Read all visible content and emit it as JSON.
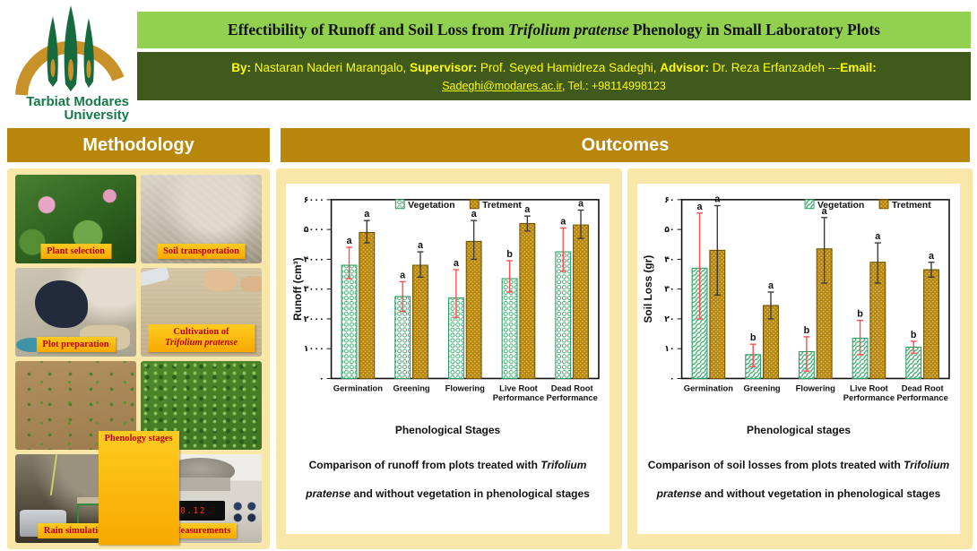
{
  "header": {
    "logo": {
      "line1": "Tarbiat Modares",
      "line2": "University"
    },
    "title": {
      "pre": "Effectibility of Runoff and Soil Loss from ",
      "italic": "Trifolium pratense",
      "post": " Phenology in Small Laboratory Plots"
    },
    "byline": {
      "by_label": "By:",
      "by_text": " Nastaran Naderi Marangalo, ",
      "supervisor_label": "Supervisor:",
      "supervisor_text": " Prof. Seyed Hamidreza Sadeghi, ",
      "advisor_label": "Advisor:",
      "advisor_text": " Dr. Reza Erfanzadeh ---",
      "email_label": "Email:",
      "email_link": "Sadeghi@modares.ac.ir",
      "tel": ", Tel.: +98114998123"
    }
  },
  "sections": {
    "methodology": "Methodology",
    "outcomes": "Outcomes"
  },
  "methodology": {
    "labels": {
      "plant_selection": "Plant selection",
      "soil_transportation": "Soil transportation",
      "plot_preparation": "Plot preparation",
      "cultivation_line1": "Cultivation of",
      "cultivation_line2": "Trifolium pratense",
      "phenology_stages": "Phenology stages",
      "rain_simulation": "Rain simulation",
      "measurements": "Measurements"
    },
    "scale_display": "470.12"
  },
  "colors": {
    "title_bg": "#92d050",
    "band_bg": "#3f5a1a",
    "gold_header": "#b8860b",
    "panel_bg": "#f8e7a8",
    "label_orange": "#ffc000",
    "label_red": "#c00000"
  },
  "chart_data": [
    {
      "type": "bar",
      "ylabel": "Runoff (cm³)",
      "xlabel": "Phenological Stages",
      "caption_pre": "Comparison of runoff from plots treated with ",
      "caption_italic": "Trifolium pratense",
      "caption_post": " and without vegetation in phenological stages",
      "categories": [
        [
          "Germination"
        ],
        [
          "Greening"
        ],
        [
          "Flowering"
        ],
        [
          "Live Root",
          "Performance"
        ],
        [
          "Dead Root",
          "Performance"
        ]
      ],
      "ylim": [
        0,
        6000
      ],
      "ytick_step": 1000,
      "ytick_labels": [
        "۰",
        "۱۰۰۰",
        "۲۰۰۰",
        "۳۰۰۰",
        "۴۰۰۰",
        "۵۰۰۰",
        "۶۰۰۰"
      ],
      "grid": false,
      "legend_position": "center",
      "series": [
        {
          "name": "Vegetation",
          "pattern": "circles",
          "color": "#27a05e",
          "error_color": "#ff4d4d",
          "values": [
            3800,
            2750,
            2700,
            3350,
            4250
          ],
          "err_minus": [
            450,
            500,
            650,
            450,
            650
          ],
          "err_plus": [
            600,
            500,
            950,
            600,
            800
          ],
          "letters": [
            "a",
            "a",
            "a",
            "b",
            "a"
          ]
        },
        {
          "name": "Tretment",
          "pattern": "dots",
          "color": "#b8860b",
          "error_color": "#3a3a3a",
          "values": [
            4900,
            3800,
            4600,
            5200,
            5150
          ],
          "err_minus": [
            350,
            400,
            600,
            250,
            450
          ],
          "err_plus": [
            400,
            450,
            700,
            250,
            500
          ],
          "letters": [
            "a",
            "a",
            "a",
            "a",
            "a"
          ]
        }
      ]
    },
    {
      "type": "bar",
      "ylabel": "Soil Loss (gr)",
      "xlabel": "Phenological stages",
      "caption_pre": "Comparison of soil losses from plots treated with ",
      "caption_italic": "Trifolium pratense",
      "caption_post": " and without vegetation in phenological stages",
      "categories": [
        [
          "Germination"
        ],
        [
          "Greening"
        ],
        [
          "Flowering"
        ],
        [
          "Live Root",
          "Performance"
        ],
        [
          "Dead Root",
          "Performance"
        ]
      ],
      "ylim": [
        0,
        60
      ],
      "ytick_step": 10,
      "ytick_labels": [
        "۰",
        "۱۰",
        "۲۰",
        "۳۰",
        "۴۰",
        "۵۰",
        "۶۰"
      ],
      "grid": false,
      "legend_position": "right",
      "series": [
        {
          "name": "Vegetation",
          "pattern": "diag",
          "color": "#27a05e",
          "error_color": "#ff4d4d",
          "values": [
            37,
            8,
            9,
            13.5,
            10.5
          ],
          "err_minus": [
            17,
            4,
            6.5,
            5.5,
            2
          ],
          "err_plus": [
            18.5,
            3.5,
            5,
            6,
            2
          ],
          "letters": [
            "a",
            "b",
            "b",
            "b",
            "b"
          ]
        },
        {
          "name": "Tretment",
          "pattern": "dots",
          "color": "#b8860b",
          "error_color": "#3a3a3a",
          "values": [
            43,
            24.5,
            43.5,
            39,
            36.5
          ],
          "err_minus": [
            15,
            4.5,
            11.5,
            7,
            2.5
          ],
          "err_plus": [
            15,
            4.5,
            10.5,
            6.5,
            2.5
          ],
          "letters": [
            "a",
            "a",
            "a",
            "a",
            "a"
          ]
        }
      ]
    }
  ]
}
